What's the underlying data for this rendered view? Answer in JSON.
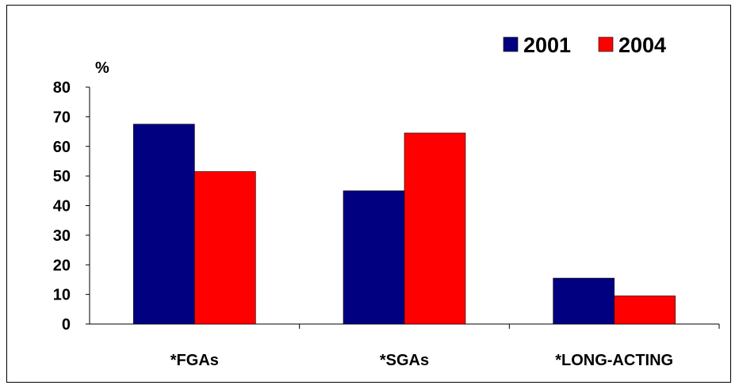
{
  "chart_data": {
    "type": "bar",
    "title": "",
    "xlabel": "",
    "ylabel": "%",
    "ylim": [
      0,
      80
    ],
    "yticks": [
      0,
      10,
      20,
      30,
      40,
      50,
      60,
      70,
      80
    ],
    "categories": [
      "*FGAs",
      "*SGAs",
      "*LONG-ACTING"
    ],
    "series": [
      {
        "name": "2001",
        "values": [
          67.5,
          45,
          15.5
        ],
        "color": "#000080"
      },
      {
        "name": "2004",
        "values": [
          51.5,
          64.5,
          9.5
        ],
        "color": "#ff0000"
      }
    ],
    "legend_position": "top-right",
    "grid": false
  }
}
